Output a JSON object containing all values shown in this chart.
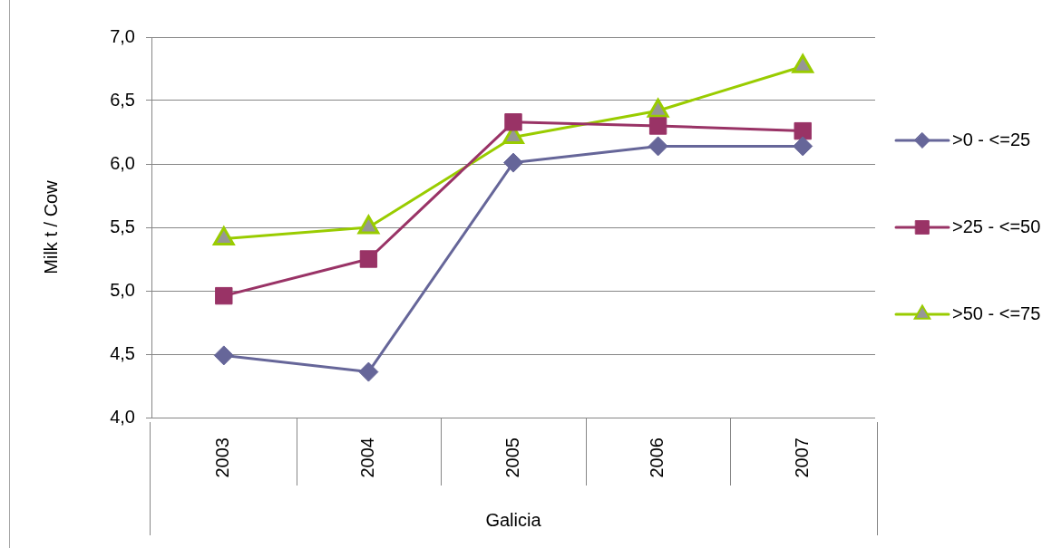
{
  "chart_data": {
    "type": "line",
    "ylabel": "Milk t / Cow",
    "xlabel": "Galicia",
    "categories": [
      "2003",
      "2004",
      "2005",
      "2006",
      "2007"
    ],
    "series": [
      {
        "name": ">0 - <=25",
        "color": "#666699",
        "marker": "diamond",
        "values": [
          4.49,
          4.36,
          6.01,
          6.14,
          6.14
        ]
      },
      {
        "name": ">25 - <=50",
        "color": "#993366",
        "marker": "square",
        "values": [
          4.96,
          5.25,
          6.33,
          6.3,
          6.26
        ]
      },
      {
        "name": ">50 - <=75",
        "color": "#99cc00",
        "marker": "triangle",
        "values": [
          5.41,
          5.5,
          6.21,
          6.42,
          6.77
        ]
      }
    ],
    "ylim": [
      4,
      7
    ],
    "yticks": [
      {
        "value": 4,
        "label": "4,0"
      },
      {
        "value": 4.5,
        "label": "4,5"
      },
      {
        "value": 5,
        "label": "5,0"
      },
      {
        "value": 5.5,
        "label": "5,5"
      },
      {
        "value": 6,
        "label": "6,0"
      },
      {
        "value": 6.5,
        "label": "6,5"
      },
      {
        "value": 7,
        "label": "7,0"
      }
    ],
    "grid": "y",
    "legend": "right"
  }
}
